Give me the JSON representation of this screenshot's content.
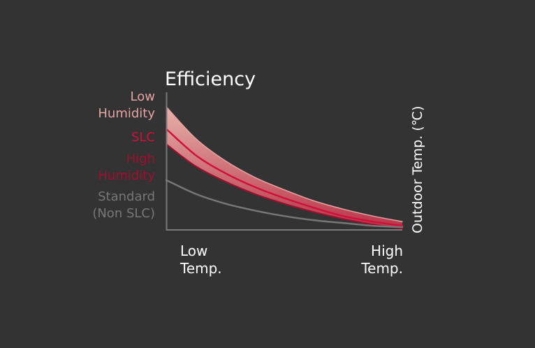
{
  "chart_data": {
    "type": "area",
    "title": "Efficiency",
    "xlabel": "Outdoor Temp. (℃)",
    "ylabel": "",
    "x_tick_labels": [
      [
        "Low",
        "Temp."
      ],
      [
        "High",
        "Temp."
      ]
    ],
    "grid": false,
    "legend": "left",
    "x": [
      0,
      1,
      2,
      3,
      4,
      5,
      6,
      7,
      8
    ],
    "series": [
      {
        "name": "Low Humidity",
        "label_lines": [
          "Low",
          "Humidity"
        ],
        "color": "#e8a3a3",
        "values": [
          8.9,
          6.6,
          5.0,
          3.8,
          2.9,
          2.1,
          1.5,
          1.0,
          0.6
        ]
      },
      {
        "name": "SLC",
        "label_lines": [
          "SLC"
        ],
        "color": "#d0103a",
        "values": [
          7.3,
          5.4,
          4.1,
          3.1,
          2.3,
          1.6,
          1.0,
          0.6,
          0.3
        ]
      },
      {
        "name": "High Humidity",
        "label_lines": [
          "High",
          "Humidity"
        ],
        "color": "#a50d2e",
        "values": [
          6.2,
          4.6,
          3.5,
          2.6,
          1.9,
          1.3,
          0.8,
          0.4,
          0.1
        ]
      },
      {
        "name": "Standard (Non SLC)",
        "label_lines": [
          "Standard",
          "(Non SLC)"
        ],
        "color": "#777777",
        "values": [
          3.6,
          2.6,
          1.9,
          1.4,
          1.0,
          0.7,
          0.5,
          0.3,
          0.2
        ]
      }
    ],
    "band": {
      "upper": "Low Humidity",
      "lower": "High Humidity",
      "color": "#f0b9b0"
    },
    "xlim": [
      0,
      8
    ],
    "ylim": [
      0,
      10
    ]
  }
}
